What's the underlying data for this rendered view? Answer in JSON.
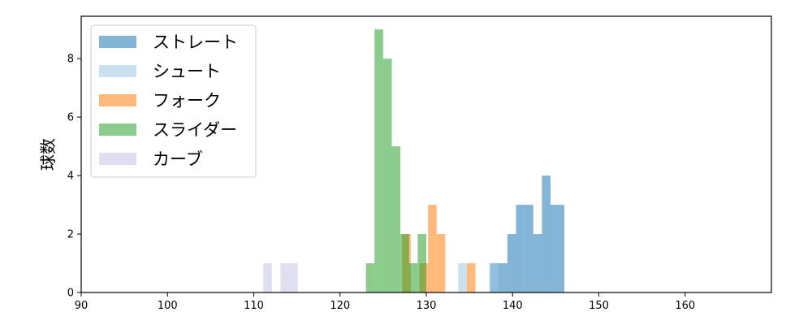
{
  "chart_data": {
    "type": "bar",
    "subtype": "histogram-overlay",
    "title": "",
    "xlabel": "",
    "ylabel": "球数",
    "xlim": [
      90,
      170
    ],
    "ylim": [
      0,
      9.45
    ],
    "x_ticks": [
      90,
      100,
      110,
      120,
      130,
      140,
      150,
      160
    ],
    "y_ticks": [
      0,
      2,
      4,
      6,
      8
    ],
    "grid": false,
    "legend_position": "upper-left",
    "bar_opacity": 0.55,
    "series": [
      {
        "name": "ストレート",
        "color": "#1f77b4",
        "bins": [
          {
            "x0": 137.4,
            "x1": 138.4,
            "count": 1
          },
          {
            "x0": 138.4,
            "x1": 139.4,
            "count": 1
          },
          {
            "x0": 139.4,
            "x1": 140.4,
            "count": 2
          },
          {
            "x0": 140.4,
            "x1": 141.4,
            "count": 3
          },
          {
            "x0": 141.4,
            "x1": 142.4,
            "count": 3
          },
          {
            "x0": 142.4,
            "x1": 143.4,
            "count": 2
          },
          {
            "x0": 143.4,
            "x1": 144.4,
            "count": 4
          },
          {
            "x0": 144.4,
            "x1": 145.4,
            "count": 3
          },
          {
            "x0": 145.4,
            "x1": 146.0,
            "count": 3
          }
        ]
      },
      {
        "name": "シュート",
        "color": "#9ecae1",
        "bins": [
          {
            "x0": 133.7,
            "x1": 134.7,
            "count": 1
          },
          {
            "x0": 137.3,
            "x1": 138.3,
            "count": 1
          }
        ]
      },
      {
        "name": "フォーク",
        "color": "#ff7f0e",
        "bins": [
          {
            "x0": 127.2,
            "x1": 128.2,
            "count": 2
          },
          {
            "x0": 129.2,
            "x1": 130.2,
            "count": 1
          },
          {
            "x0": 130.2,
            "x1": 131.2,
            "count": 3
          },
          {
            "x0": 131.2,
            "x1": 132.2,
            "count": 2
          },
          {
            "x0": 134.7,
            "x1": 135.7,
            "count": 1
          }
        ]
      },
      {
        "name": "スライダー",
        "color": "#2ca02c",
        "bins": [
          {
            "x0": 123.0,
            "x1": 124.0,
            "count": 1
          },
          {
            "x0": 124.0,
            "x1": 125.0,
            "count": 9
          },
          {
            "x0": 125.0,
            "x1": 126.0,
            "count": 8
          },
          {
            "x0": 126.0,
            "x1": 127.0,
            "count": 5
          },
          {
            "x0": 127.0,
            "x1": 128.0,
            "count": 2
          },
          {
            "x0": 128.0,
            "x1": 129.0,
            "count": 1
          },
          {
            "x0": 129.0,
            "x1": 130.0,
            "count": 2
          }
        ]
      },
      {
        "name": "カーブ",
        "color": "#c5c5e5",
        "bins": [
          {
            "x0": 111.1,
            "x1": 112.1,
            "count": 1
          },
          {
            "x0": 113.1,
            "x1": 114.1,
            "count": 1
          },
          {
            "x0": 114.1,
            "x1": 115.1,
            "count": 1
          }
        ]
      }
    ]
  }
}
